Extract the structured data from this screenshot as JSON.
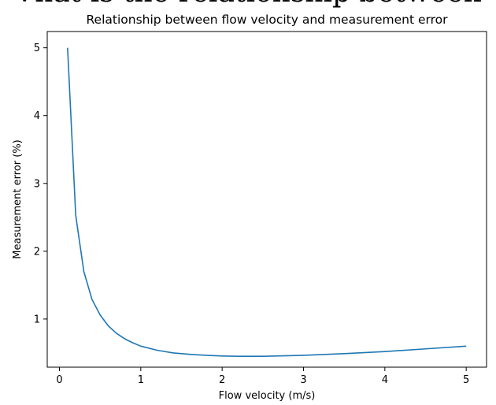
{
  "top_text": "Vhat is the relationship between",
  "chart_data": {
    "type": "line",
    "title": "Relationship between flow velocity and measurement error",
    "xlabel": "Flow velocity (m/s)",
    "ylabel": "Measurement error (%)",
    "xlim": [
      -0.15,
      5.25
    ],
    "ylim": [
      0.29,
      5.24
    ],
    "xticks": [
      0,
      1,
      2,
      3,
      4,
      5
    ],
    "yticks": [
      1,
      2,
      3,
      4,
      5
    ],
    "grid": false,
    "line_color": "#1f77b4",
    "series": [
      {
        "x": [
          0.1,
          0.2,
          0.3,
          0.4,
          0.5,
          0.6,
          0.7,
          0.8,
          0.9,
          1.0,
          1.2,
          1.4,
          1.6,
          1.8,
          2.0,
          2.2,
          2.5,
          3.0,
          3.5,
          4.0,
          4.5,
          5.0
        ],
        "values": [
          5.0,
          2.53,
          1.7,
          1.29,
          1.06,
          0.9,
          0.79,
          0.71,
          0.65,
          0.6,
          0.54,
          0.5,
          0.48,
          0.465,
          0.455,
          0.45,
          0.45,
          0.465,
          0.49,
          0.52,
          0.56,
          0.6
        ]
      }
    ]
  }
}
